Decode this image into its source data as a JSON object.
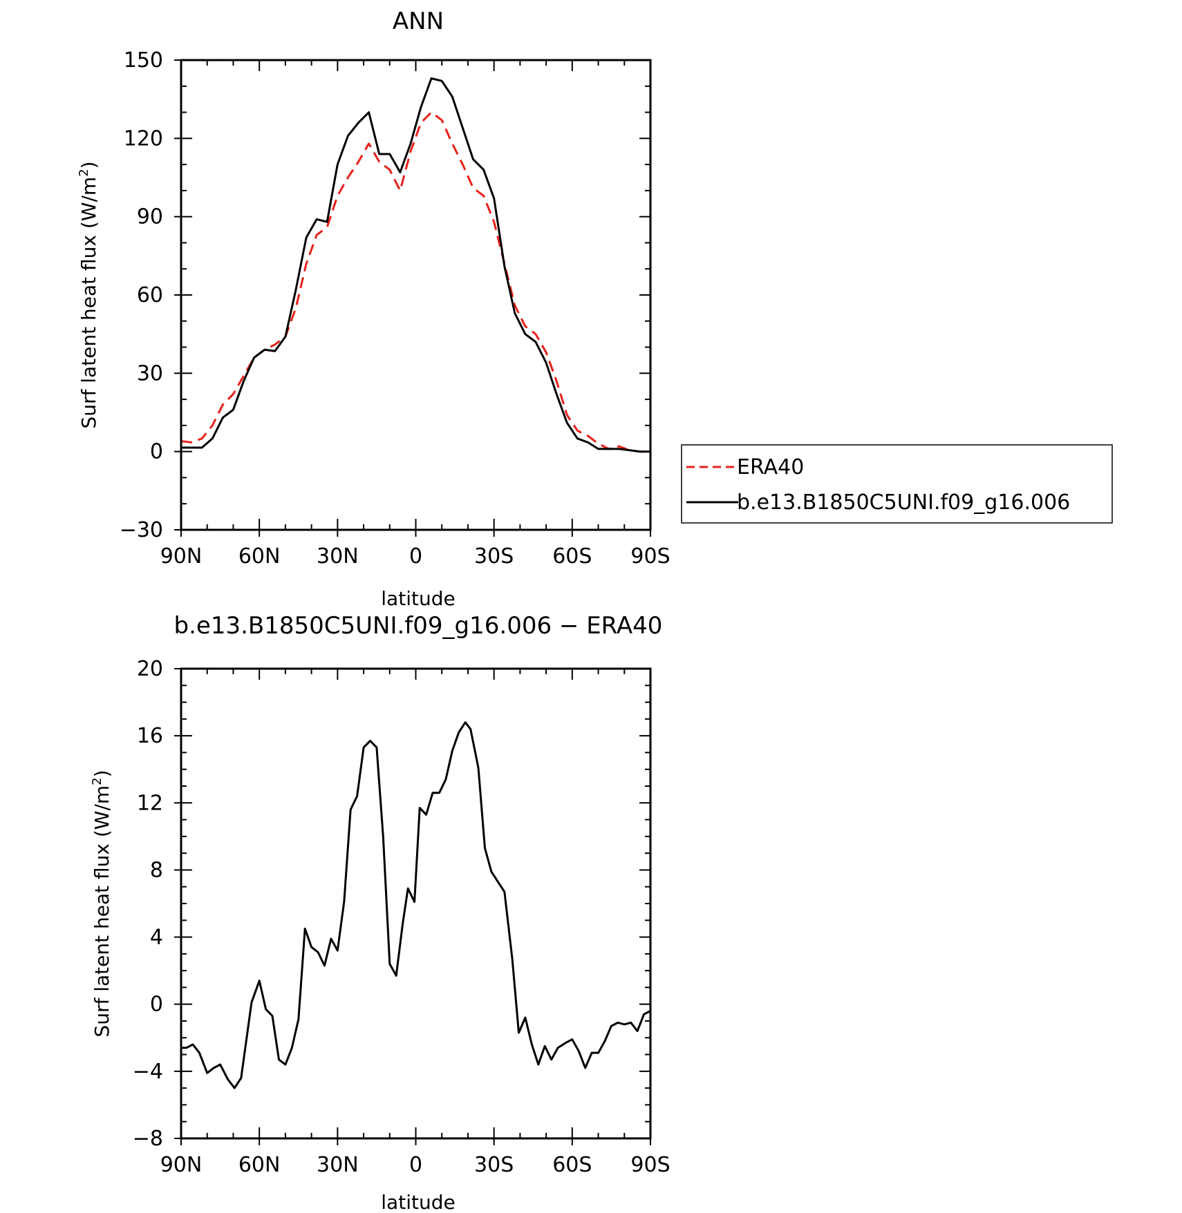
{
  "chart_data": [
    {
      "type": "line",
      "title": "ANN",
      "xlabel": "latitude",
      "ylabel": "Surf latent heat flux (W/m²)",
      "ylabel_parts": {
        "main": "Surf latent heat flux (W/m",
        "sup": "2",
        "close": ")"
      },
      "xlim": [
        -90,
        90
      ],
      "ylim": [
        -30,
        150
      ],
      "x_ticks": [
        -90,
        -60,
        -30,
        0,
        30,
        60,
        90
      ],
      "x_tick_labels": [
        "90N",
        "60N",
        "30N",
        "0",
        "30S",
        "60S",
        "90S"
      ],
      "y_ticks": [
        -30,
        0,
        30,
        60,
        90,
        120,
        150
      ],
      "y_tick_labels": [
        "−30",
        "0",
        "30",
        "60",
        "90",
        "120",
        "150"
      ],
      "x_minor_step": 10,
      "y_minor_step": 10,
      "grid": false,
      "legend": {
        "position": "right",
        "entries": [
          "ERA40",
          "b.e13.B1850C5UNI.f09_g16.006"
        ]
      },
      "x": [
        -90,
        -86,
        -82,
        -78,
        -74,
        -70,
        -66,
        -62,
        -58,
        -54,
        -50,
        -46,
        -42,
        -38,
        -34,
        -30,
        -26,
        -22,
        -18,
        -14,
        -10,
        -6,
        -2,
        2,
        6,
        10,
        14,
        18,
        22,
        26,
        30,
        34,
        38,
        42,
        46,
        50,
        54,
        58,
        62,
        66,
        70,
        74,
        78,
        82,
        86,
        90
      ],
      "series": [
        {
          "name": "ERA40",
          "color": "#e8201a",
          "dash": "dashed",
          "values": [
            4,
            3.5,
            5,
            10,
            18,
            22,
            29,
            36,
            39,
            41,
            44,
            55,
            72,
            83,
            86,
            98,
            105,
            111,
            118,
            111,
            108,
            100,
            115,
            126,
            130,
            127,
            118,
            110,
            101,
            98,
            88,
            72,
            56,
            48,
            45,
            38,
            27,
            14,
            8,
            6,
            3,
            1,
            2,
            0.5,
            0,
            0
          ]
        },
        {
          "name": "b.e13.B1850C5UNI.f09_g16.006",
          "color": "#000000",
          "dash": "solid",
          "values": [
            1.5,
            1.5,
            1.5,
            5,
            13,
            16,
            27,
            36,
            39,
            38.5,
            44,
            62,
            82,
            89,
            88,
            110,
            121,
            126,
            130,
            114,
            114,
            107,
            118,
            132,
            143,
            142,
            136,
            124,
            112,
            108,
            97,
            71,
            53,
            45,
            42,
            34,
            22,
            11,
            5,
            3.5,
            1,
            1,
            1,
            0.5,
            0,
            0
          ]
        }
      ]
    },
    {
      "type": "line",
      "title": "b.e13.B1850C5UNI.f09_g16.006 − ERA40",
      "xlabel": "latitude",
      "ylabel": "Surf latent heat flux (W/m²)",
      "ylabel_parts": {
        "main": "Surf latent heat flux (W/m",
        "sup": "2",
        "close": ")"
      },
      "xlim": [
        -90,
        90
      ],
      "ylim": [
        -8,
        20
      ],
      "x_ticks": [
        -90,
        -60,
        -30,
        0,
        30,
        60,
        90
      ],
      "x_tick_labels": [
        "90N",
        "60N",
        "30N",
        "0",
        "30S",
        "60S",
        "90S"
      ],
      "y_ticks": [
        -8,
        -4,
        0,
        4,
        8,
        12,
        16,
        20
      ],
      "y_tick_labels": [
        "−8",
        "−4",
        "0",
        "4",
        "8",
        "12",
        "16",
        "20"
      ],
      "x_minor_step": 10,
      "y_minor_step": 1,
      "grid": false,
      "x": [
        -90,
        -88,
        -85.5,
        -83,
        -80,
        -77.5,
        -75,
        -72,
        -69.5,
        -67,
        -63,
        -60,
        -57.5,
        -55,
        -52.5,
        -50,
        -47.5,
        -45,
        -42.5,
        -40,
        -37.5,
        -35,
        -32.5,
        -30,
        -27.5,
        -25,
        -22.5,
        -20,
        -17.5,
        -15,
        -12.5,
        -10,
        -7.5,
        -5,
        -3,
        -0.5,
        1.5,
        4,
        6.5,
        9,
        11.5,
        14,
        16.5,
        19,
        21,
        24,
        26.5,
        29,
        31.5,
        34,
        37,
        39.5,
        42,
        44.5,
        47,
        49.5,
        52,
        54.5,
        57.5,
        60,
        62.5,
        65,
        67.5,
        70,
        72.5,
        75,
        77.5,
        80,
        82.5,
        85,
        87.5,
        90
      ],
      "series": [
        {
          "name": "",
          "color": "#000000",
          "dash": "solid",
          "values": [
            -2.6,
            -2.6,
            -2.4,
            -2.9,
            -4.1,
            -3.8,
            -3.6,
            -4.5,
            -5,
            -4.4,
            0.1,
            1.4,
            -0.3,
            -0.7,
            -3.3,
            -3.6,
            -2.6,
            -0.9,
            4.5,
            3.4,
            3.1,
            2.3,
            3.9,
            3.2,
            6.1,
            11.6,
            12.4,
            15.3,
            15.7,
            15.3,
            10,
            2.4,
            1.7,
            4.8,
            6.9,
            6.1,
            11.7,
            11.3,
            12.6,
            12.6,
            13.4,
            15.1,
            16.2,
            16.8,
            16.4,
            14.1,
            9.3,
            7.9,
            7.3,
            6.7,
            2.7,
            -1.7,
            -0.8,
            -2.4,
            -3.6,
            -2.5,
            -3.3,
            -2.6,
            -2.3,
            -2.1,
            -2.8,
            -3.8,
            -2.9,
            -2.9,
            -2.2,
            -1.3,
            -1.1,
            -1.2,
            -1.1,
            -1.6,
            -0.6,
            -0.4
          ]
        }
      ]
    }
  ]
}
